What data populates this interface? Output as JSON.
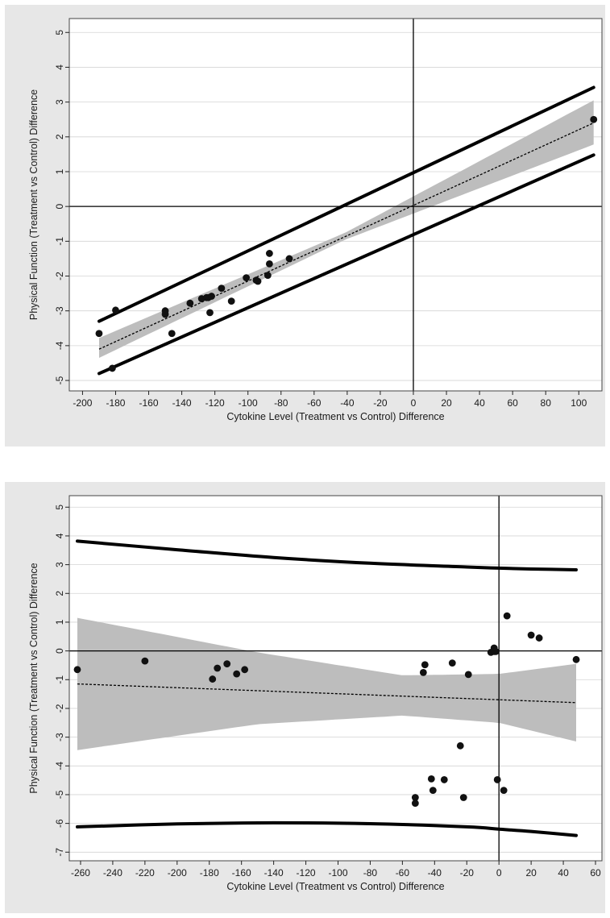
{
  "chart_data": [
    {
      "type": "scatter",
      "title": "",
      "xlabel": "Cytokine Level (Treatment vs Control) Difference",
      "ylabel": "Physical Function (Treatment vs Control) Difference",
      "xlim": [
        -208,
        114
      ],
      "ylim": [
        -5.3,
        5.4
      ],
      "xticks": [
        -200,
        -180,
        -160,
        -140,
        -120,
        -100,
        -80,
        -60,
        -40,
        -20,
        0,
        20,
        40,
        60,
        80,
        100
      ],
      "yticks": [
        5,
        4,
        3,
        2,
        1,
        0,
        -1,
        -2,
        -3,
        -4,
        -5
      ],
      "grid": "horizontal",
      "reference_lines": {
        "x": 0,
        "y": 0
      },
      "points": [
        [
          -190,
          -3.65
        ],
        [
          -182,
          -4.65
        ],
        [
          -180,
          -2.98
        ],
        [
          -150,
          -3.0
        ],
        [
          -150,
          -3.1
        ],
        [
          -146,
          -3.65
        ],
        [
          -135,
          -2.78
        ],
        [
          -128,
          -2.65
        ],
        [
          -125,
          -2.62
        ],
        [
          -124,
          -2.62
        ],
        [
          -123,
          -3.05
        ],
        [
          -122,
          -2.58
        ],
        [
          -116,
          -2.35
        ],
        [
          -110,
          -2.72
        ],
        [
          -101,
          -2.05
        ],
        [
          -95,
          -2.12
        ],
        [
          -94,
          -2.15
        ],
        [
          -88,
          -1.98
        ],
        [
          -87,
          -1.65
        ],
        [
          -87,
          -1.35
        ],
        [
          -75,
          -1.5
        ],
        [
          109,
          2.5
        ]
      ],
      "fit_line": {
        "x": [
          -190,
          109
        ],
        "y": [
          -4.1,
          2.4
        ]
      },
      "confidence_band": {
        "x": [
          -190,
          -41,
          109
        ],
        "lower": [
          -4.35,
          -0.95,
          1.78
        ],
        "upper": [
          -3.78,
          -0.75,
          3.05
        ]
      },
      "prediction_interval": {
        "x": [
          -190,
          109
        ],
        "lower": [
          -4.8,
          1.48
        ],
        "upper": [
          -3.3,
          3.42
        ]
      },
      "colors": {
        "band": "#bdbdbd",
        "line": "#000000",
        "point": "#111111",
        "background": "#e7e7e7",
        "plot_area": "#ffffff"
      }
    },
    {
      "type": "scatter",
      "title": "",
      "xlabel": "Cytokine Level (Treatment vs Control) Difference",
      "ylabel": "Physical Function (Treatment vs Control) Difference",
      "xlim": [
        -267,
        64
      ],
      "ylim": [
        -7.3,
        5.4
      ],
      "xticks": [
        -260,
        -240,
        -220,
        -200,
        -180,
        -160,
        -140,
        -120,
        -100,
        -80,
        -60,
        -40,
        -20,
        0,
        20,
        40,
        60
      ],
      "yticks": [
        5,
        4,
        3,
        2,
        1,
        0,
        -1,
        -2,
        -3,
        -4,
        -5,
        -6,
        -7
      ],
      "grid": "horizontal",
      "reference_lines": {
        "x": 0,
        "y": 0
      },
      "points": [
        [
          -262,
          -0.65
        ],
        [
          -220,
          -0.35
        ],
        [
          -178,
          -0.98
        ],
        [
          -175,
          -0.6
        ],
        [
          -169,
          -0.45
        ],
        [
          -163,
          -0.8
        ],
        [
          -158,
          -0.65
        ],
        [
          -52,
          -5.1
        ],
        [
          -52,
          -5.3
        ],
        [
          -47,
          -0.75
        ],
        [
          -46,
          -0.48
        ],
        [
          -42,
          -4.45
        ],
        [
          -41,
          -4.85
        ],
        [
          -34,
          -4.48
        ],
        [
          -29,
          -0.42
        ],
        [
          -24,
          -3.3
        ],
        [
          -22,
          -5.1
        ],
        [
          -19,
          -0.82
        ],
        [
          -5,
          -0.05
        ],
        [
          -3,
          0.1
        ],
        [
          -3,
          -0.02
        ],
        [
          -2,
          -0.02
        ],
        [
          -1,
          -4.48
        ],
        [
          3,
          -4.85
        ],
        [
          5,
          1.22
        ],
        [
          20,
          0.55
        ],
        [
          25,
          0.45
        ],
        [
          48,
          -0.3
        ]
      ],
      "fit_line": {
        "x": [
          -262,
          48
        ],
        "y": [
          -1.15,
          -1.8
        ]
      },
      "confidence_band": {
        "x": [
          -262,
          -150,
          -60,
          0,
          48
        ],
        "lower": [
          -3.45,
          -2.55,
          -2.25,
          -2.5,
          -3.15
        ],
        "upper": [
          1.15,
          -0.05,
          -0.85,
          -0.8,
          -0.45
        ]
      },
      "prediction_interval": {
        "x": [
          -262,
          -200,
          -140,
          -80,
          -20,
          0,
          20,
          48
        ],
        "lower": [
          -6.12,
          -6.02,
          -5.98,
          -6.01,
          -6.12,
          -6.2,
          -6.28,
          -6.42
        ],
        "upper": [
          3.82,
          3.52,
          3.25,
          3.05,
          2.92,
          2.88,
          2.85,
          2.82
        ]
      },
      "colors": {
        "band": "#bdbdbd",
        "line": "#000000",
        "point": "#111111",
        "background": "#e7e7e7",
        "plot_area": "#ffffff"
      }
    }
  ]
}
